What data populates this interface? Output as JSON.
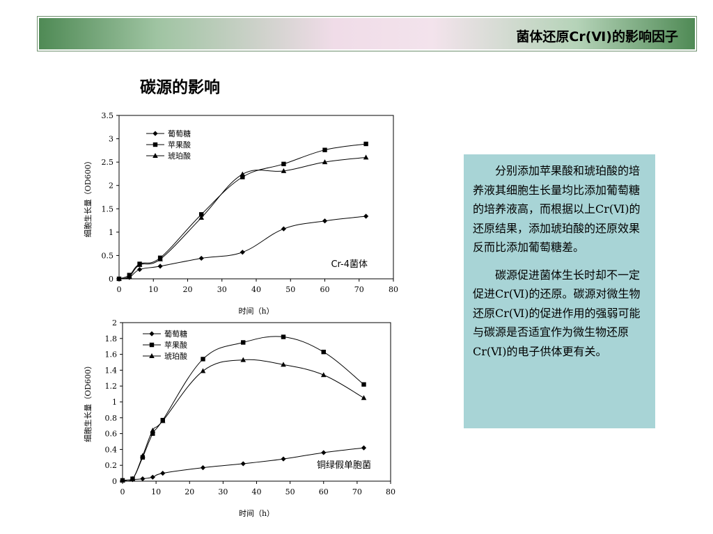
{
  "header": {
    "title": "菌体还原Cr(Ⅵ)的影响因子"
  },
  "section": {
    "title": "碳源的影响"
  },
  "explanation": {
    "paragraphs": [
      "分别添加苹果酸和琥珀酸的培养液其细胞生长量均比添加葡萄糖的培养液高，而根据以上Cr(Ⅵ)的还原结果，添加琥珀酸的还原效果反而比添加葡萄糖差。",
      "碳源促进菌体生长时却不一定促进Cr(Ⅵ)的还原。碳源对微生物还原Cr(Ⅵ)的促进作用的强弱可能与碳源是否适宜作为微生物还原Cr(Ⅵ)的电子供体更有关。"
    ]
  },
  "colors": {
    "header_green": "#4f8a55",
    "header_pink": "#f0dce8",
    "textbox_bg": "#a8d4d6"
  },
  "chart_data": [
    {
      "type": "line",
      "annotation": "Cr-4菌体",
      "xlabel": "时间（h）",
      "ylabel": "细胞生长量（OD600）",
      "xlim": [
        0,
        80
      ],
      "ylim": [
        0,
        3.5
      ],
      "xticks": [
        0,
        10,
        20,
        30,
        40,
        50,
        60,
        70,
        80
      ],
      "yticks": [
        0,
        0.5,
        1,
        1.5,
        2,
        2.5,
        3,
        3.5
      ],
      "grid": false,
      "legend": "top-left",
      "series": [
        {
          "name": "葡萄糖",
          "marker": "diamond",
          "x": [
            0,
            3,
            6,
            12,
            24,
            36,
            48,
            60,
            72
          ],
          "y": [
            0,
            0.03,
            0.2,
            0.27,
            0.44,
            0.57,
            1.07,
            1.24,
            1.34
          ]
        },
        {
          "name": "苹果酸",
          "marker": "square",
          "x": [
            0,
            3,
            6,
            12,
            24,
            36,
            48,
            60,
            72
          ],
          "y": [
            0,
            0.08,
            0.32,
            0.45,
            1.38,
            2.18,
            2.46,
            2.76,
            2.89
          ]
        },
        {
          "name": "琥珀酸",
          "marker": "triangle",
          "x": [
            0,
            3,
            6,
            12,
            24,
            36,
            48,
            60,
            72
          ],
          "y": [
            0,
            0.05,
            0.3,
            0.42,
            1.31,
            2.24,
            2.31,
            2.5,
            2.6
          ]
        }
      ]
    },
    {
      "type": "line",
      "annotation": "铜绿假单胞菌",
      "xlabel": "时间（h）",
      "ylabel": "细胞生长量（OD600）",
      "xlim": [
        0,
        80
      ],
      "ylim": [
        0,
        2
      ],
      "xticks": [
        0,
        10,
        20,
        30,
        40,
        50,
        60,
        70,
        80
      ],
      "yticks": [
        0,
        0.2,
        0.4,
        0.6,
        0.8,
        1,
        1.2,
        1.4,
        1.6,
        1.8,
        2
      ],
      "grid": false,
      "legend": "top-left",
      "series": [
        {
          "name": "葡萄糖",
          "marker": "diamond",
          "x": [
            0,
            3,
            6,
            9,
            12,
            24,
            36,
            48,
            60,
            72
          ],
          "y": [
            0.01,
            0.02,
            0.03,
            0.05,
            0.1,
            0.17,
            0.22,
            0.28,
            0.36,
            0.42
          ]
        },
        {
          "name": "苹果酸",
          "marker": "square",
          "x": [
            0,
            3,
            6,
            9,
            12,
            24,
            36,
            48,
            60,
            72
          ],
          "y": [
            0.01,
            0.03,
            0.3,
            0.6,
            0.77,
            1.54,
            1.75,
            1.82,
            1.63,
            1.22
          ]
        },
        {
          "name": "琥珀酸",
          "marker": "triangle",
          "x": [
            0,
            3,
            6,
            9,
            12,
            24,
            36,
            48,
            60,
            72
          ],
          "y": [
            0.01,
            0.03,
            0.32,
            0.64,
            0.76,
            1.39,
            1.53,
            1.47,
            1.34,
            1.05
          ]
        }
      ]
    }
  ]
}
